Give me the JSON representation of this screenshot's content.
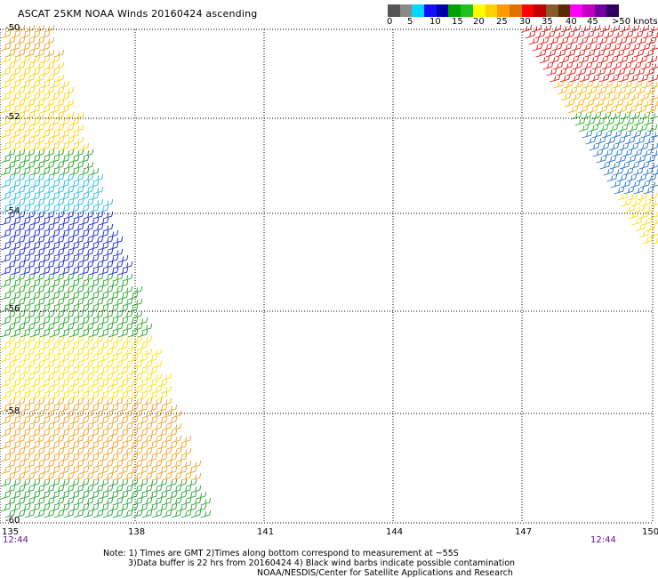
{
  "title": "ASCAT 25KM NOAA Winds 20160424 ascending",
  "speed_scale": {
    "colors": [
      "#555555",
      "#8a8a8a",
      "#00d8ff",
      "#1010ff",
      "#0000a8",
      "#00a000",
      "#20c020",
      "#ffff00",
      "#ffd000",
      "#ff9900",
      "#e07000",
      "#ff0000",
      "#c00000",
      "#8b5a2b",
      "#5a2a00",
      "#ff00ff",
      "#c000c0",
      "#7000a0",
      "#300060"
    ],
    "labels": [
      "0",
      "5",
      "10",
      "15",
      "20",
      "25",
      "30",
      "35",
      "40",
      "45",
      ">50 knots"
    ]
  },
  "axes": {
    "lon_ticks": [
      "135",
      "138",
      "141",
      "144",
      "147",
      "150"
    ],
    "lat_ticks": [
      "-50",
      "-52",
      "-54",
      "-56",
      "-58",
      "-60"
    ]
  },
  "pass_times": {
    "left": "12:44",
    "right": "12:44"
  },
  "notes": {
    "line1": "Note: 1) Times are GMT 2)Times along bottom correspond to measurement at ~55S",
    "line2": "3)Data buffer is 22 hrs from 20160424 4) Black wind barbs indicate possible contamination",
    "line3": "NOAA/NESDIS/Center for Satellite Applications and Research"
  }
}
